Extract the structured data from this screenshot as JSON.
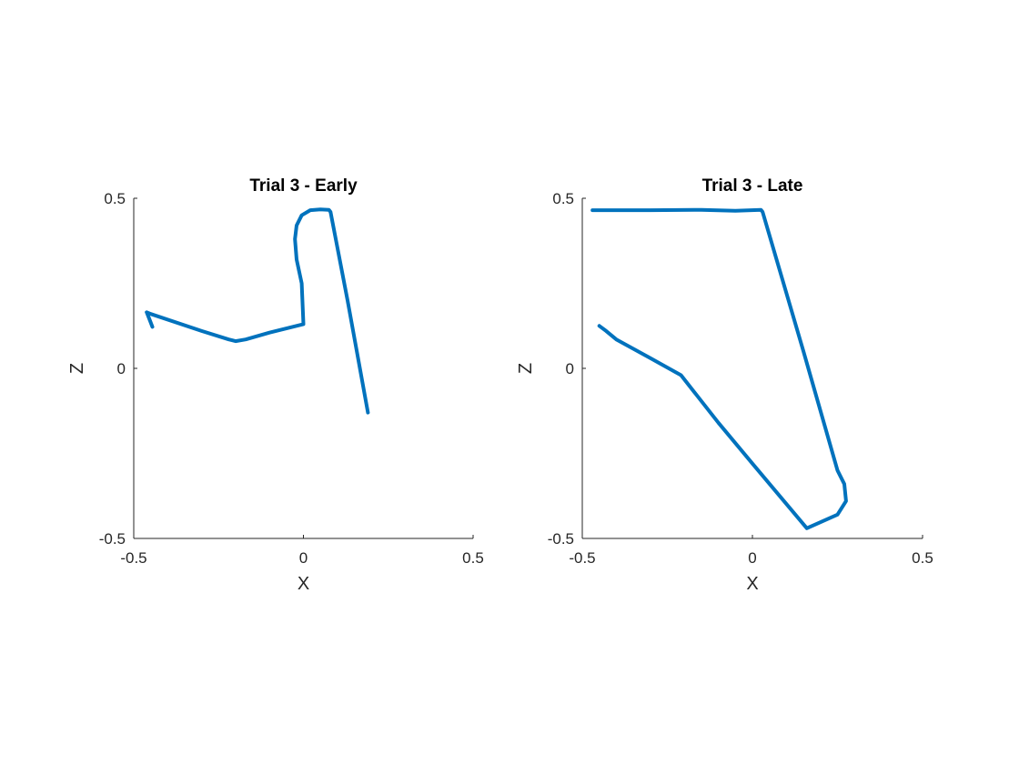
{
  "chart_data": [
    {
      "type": "line",
      "title": "Trial 3 - Early",
      "xlabel": "X",
      "ylabel": "Z",
      "xlim": [
        -0.5,
        0.5
      ],
      "ylim": [
        -0.5,
        0.5
      ],
      "xticks": [
        -0.5,
        0,
        0.5
      ],
      "yticks": [
        -0.5,
        0,
        0.5
      ],
      "xtick_labels": [
        "-0.5",
        "0",
        "0.5"
      ],
      "ytick_labels": [
        "-0.5",
        "0",
        "0.5"
      ],
      "grid": false,
      "color": "#0072BD",
      "series": [
        {
          "x": [
            -0.445,
            -0.452,
            -0.462,
            -0.45,
            -0.3,
            -0.22,
            -0.2,
            -0.17,
            -0.1,
            0.0,
            -0.005,
            -0.02,
            -0.025,
            -0.02,
            -0.005,
            0.02,
            0.05,
            0.075,
            0.08,
            0.13,
            0.19
          ],
          "y": [
            0.122,
            0.14,
            0.165,
            0.16,
            0.11,
            0.085,
            0.08,
            0.085,
            0.105,
            0.13,
            0.25,
            0.32,
            0.38,
            0.42,
            0.45,
            0.465,
            0.467,
            0.466,
            0.46,
            0.2,
            -0.13
          ]
        }
      ]
    },
    {
      "type": "line",
      "title": "Trial 3 - Late",
      "xlabel": "X",
      "ylabel": "Z",
      "xlim": [
        -0.5,
        0.5
      ],
      "ylim": [
        -0.5,
        0.5
      ],
      "xticks": [
        -0.5,
        0,
        0.5
      ],
      "yticks": [
        -0.5,
        0,
        0.5
      ],
      "xtick_labels": [
        "-0.5",
        "0",
        "0.5"
      ],
      "ytick_labels": [
        "-0.5",
        "0",
        "0.5"
      ],
      "grid": false,
      "color": "#0072BD",
      "series": [
        {
          "x": [
            -0.47,
            -0.3,
            -0.15,
            -0.05,
            0.025,
            0.03,
            0.15,
            0.25,
            0.27,
            0.275,
            0.25,
            0.16,
            0.0,
            -0.1,
            -0.21,
            -0.3,
            -0.4,
            -0.43,
            -0.45
          ],
          "y": [
            0.465,
            0.465,
            0.466,
            0.463,
            0.466,
            0.46,
            0.05,
            -0.3,
            -0.34,
            -0.39,
            -0.43,
            -0.47,
            -0.28,
            -0.16,
            -0.02,
            0.03,
            0.085,
            0.11,
            0.125
          ]
        }
      ]
    }
  ]
}
